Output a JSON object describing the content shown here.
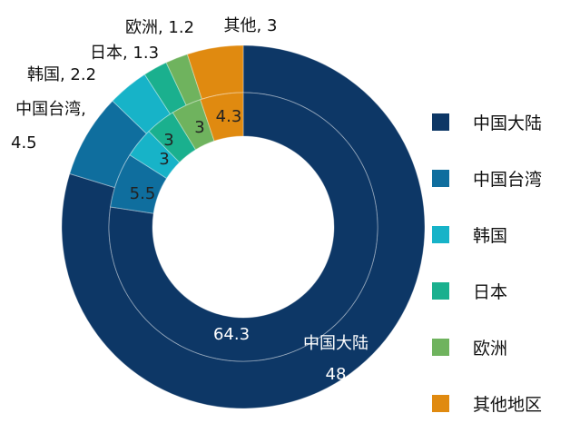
{
  "chart_data": {
    "type": "donut",
    "categories": [
      "中国大陆",
      "中国台湾",
      "韩国",
      "日本",
      "欧洲",
      "其他地区"
    ],
    "colors": [
      "#0d3766",
      "#0f6e9e",
      "#17b3c8",
      "#1ab08e",
      "#6fb35e",
      "#e08a10"
    ],
    "series": [
      {
        "ring": "outer",
        "values": [
          48,
          4.5,
          2.2,
          1.3,
          1.2,
          3
        ],
        "labels": [
          "中国大陆\n48",
          "中国台湾,\n4.5",
          "韩国, 2.2",
          "日本, 1.3",
          "欧洲, 1.2",
          "其他, 3"
        ]
      },
      {
        "ring": "inner",
        "values": [
          64.3,
          5.5,
          3,
          3,
          3,
          4.3
        ],
        "labels": [
          "64.3",
          "5.5",
          "3",
          "3",
          "3",
          "4.3"
        ]
      }
    ],
    "legend": {
      "placement": "right",
      "entries": [
        "中国大陆",
        "中国台湾",
        "韩国",
        "日本",
        "欧洲",
        "其他地区"
      ]
    }
  }
}
